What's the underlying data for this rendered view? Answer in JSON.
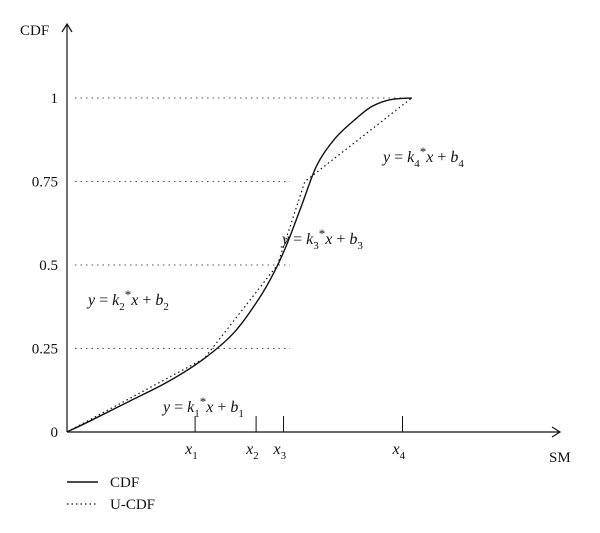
{
  "chart_data": {
    "type": "line",
    "ylabel": "CDF",
    "xlabel": "SM",
    "ylim": [
      0,
      1
    ],
    "y_ticks": [
      "0",
      "0.25",
      "0.5",
      "0.75",
      "1"
    ],
    "y_tick_values": [
      0,
      0.25,
      0.5,
      0.75,
      1
    ],
    "x_ticks": [
      {
        "base": "x",
        "sub": "1"
      },
      {
        "base": "x",
        "sub": "2"
      },
      {
        "base": "x",
        "sub": "3"
      },
      {
        "base": "x",
        "sub": "4"
      }
    ],
    "grid": "dotted horizontal reference lines at 0.25, 0.5, 0.75, 1",
    "legend": {
      "placement": "bottom-left",
      "entries": [
        {
          "label": "CDF",
          "style": "solid"
        },
        {
          "label": "U-CDF",
          "style": "dotted"
        }
      ]
    },
    "series": [
      {
        "name": "CDF",
        "style": "solid",
        "points": [
          [
            0,
            0
          ],
          [
            0.08,
            0.035
          ],
          [
            0.2,
            0.09
          ],
          [
            0.33,
            0.15
          ],
          [
            0.45,
            0.22
          ],
          [
            0.55,
            0.3
          ],
          [
            0.63,
            0.4
          ],
          [
            0.68,
            0.48
          ],
          [
            0.72,
            0.56
          ],
          [
            0.77,
            0.68
          ],
          [
            0.82,
            0.8
          ],
          [
            0.88,
            0.88
          ],
          [
            0.95,
            0.94
          ],
          [
            1.0,
            0.975
          ],
          [
            1.06,
            0.995
          ],
          [
            1.13,
            1.0
          ]
        ]
      },
      {
        "name": "U-CDF",
        "style": "dotted",
        "points": [
          [
            0,
            0
          ],
          [
            0.45,
            0.22
          ],
          [
            0.69,
            0.5
          ],
          [
            0.78,
            0.75
          ],
          [
            1.13,
            1.0
          ]
        ]
      }
    ],
    "annotations": [
      {
        "k": "k",
        "ksub": "1",
        "b": "b",
        "bsub": "1"
      },
      {
        "k": "k",
        "ksub": "2",
        "b": "b",
        "bsub": "2"
      },
      {
        "k": "k",
        "ksub": "3",
        "b": "b",
        "bsub": "3"
      },
      {
        "k": "k",
        "ksub": "4",
        "b": "b",
        "bsub": "4"
      }
    ],
    "eq_parts": {
      "y": "y",
      "eq": " = ",
      "star": "*",
      "x": "x",
      "plus": " + "
    }
  }
}
